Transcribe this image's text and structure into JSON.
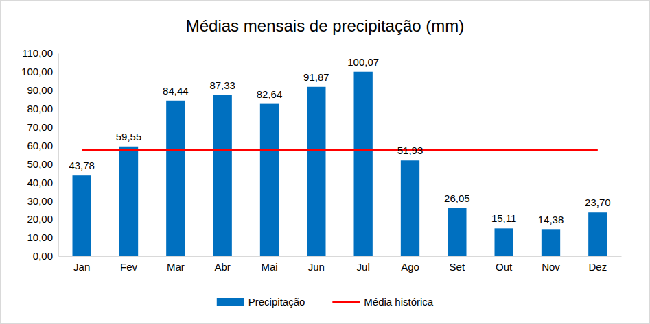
{
  "chart_data": {
    "type": "bar",
    "title": "Médias mensais de precipitação (mm)",
    "categories": [
      "Jan",
      "Fev",
      "Mar",
      "Abr",
      "Mai",
      "Jun",
      "Jul",
      "Ago",
      "Set",
      "Out",
      "Nov",
      "Dez"
    ],
    "series": [
      {
        "name": "Precipitação",
        "type": "bar",
        "color": "#0070c0",
        "values": [
          43.78,
          59.55,
          84.44,
          87.33,
          82.64,
          91.87,
          100.07,
          51.93,
          26.05,
          15.11,
          14.38,
          23.7
        ],
        "value_labels": [
          "43,78",
          "59,55",
          "84,44",
          "87,33",
          "82,64",
          "91,87",
          "100,07",
          "51,93",
          "26,05",
          "15,11",
          "14,38",
          "23,70"
        ]
      },
      {
        "name": "Média histórica",
        "type": "line",
        "color": "#ff0000",
        "line_style": "solid",
        "values": [
          57.5,
          57.5,
          57.5,
          57.5,
          57.5,
          57.5,
          57.5,
          57.5,
          57.5,
          57.5,
          57.5,
          57.5
        ]
      }
    ],
    "ylim": [
      0,
      110
    ],
    "yticks": [
      {
        "value": 0,
        "label": "0,00"
      },
      {
        "value": 10,
        "label": "10,00"
      },
      {
        "value": 20,
        "label": "20,00"
      },
      {
        "value": 30,
        "label": "30,00"
      },
      {
        "value": 40,
        "label": "40,00"
      },
      {
        "value": 50,
        "label": "50,00"
      },
      {
        "value": 60,
        "label": "60,00"
      },
      {
        "value": 70,
        "label": "70,00"
      },
      {
        "value": 80,
        "label": "80,00"
      },
      {
        "value": 90,
        "label": "90,00"
      },
      {
        "value": 100,
        "label": "100,00"
      },
      {
        "value": 110,
        "label": "110,00"
      }
    ],
    "grid": false,
    "data_labels": true,
    "legend": "bottom"
  }
}
